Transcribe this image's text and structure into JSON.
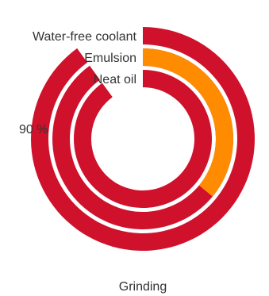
{
  "chart_data": {
    "type": "radial-bar",
    "title": "Grinding",
    "axis_label": "90 %",
    "max_percent": 100,
    "colors": {
      "total": "#D0112B",
      "highlight": "#FF8C00"
    },
    "series": [
      {
        "name": "Water-free coolant",
        "percent": 90,
        "highlight_percent": 0
      },
      {
        "name": "Emulsion",
        "percent": 90,
        "highlight_percent": 36
      },
      {
        "name": "Neat oil",
        "percent": 90,
        "highlight_percent": 0
      }
    ]
  }
}
